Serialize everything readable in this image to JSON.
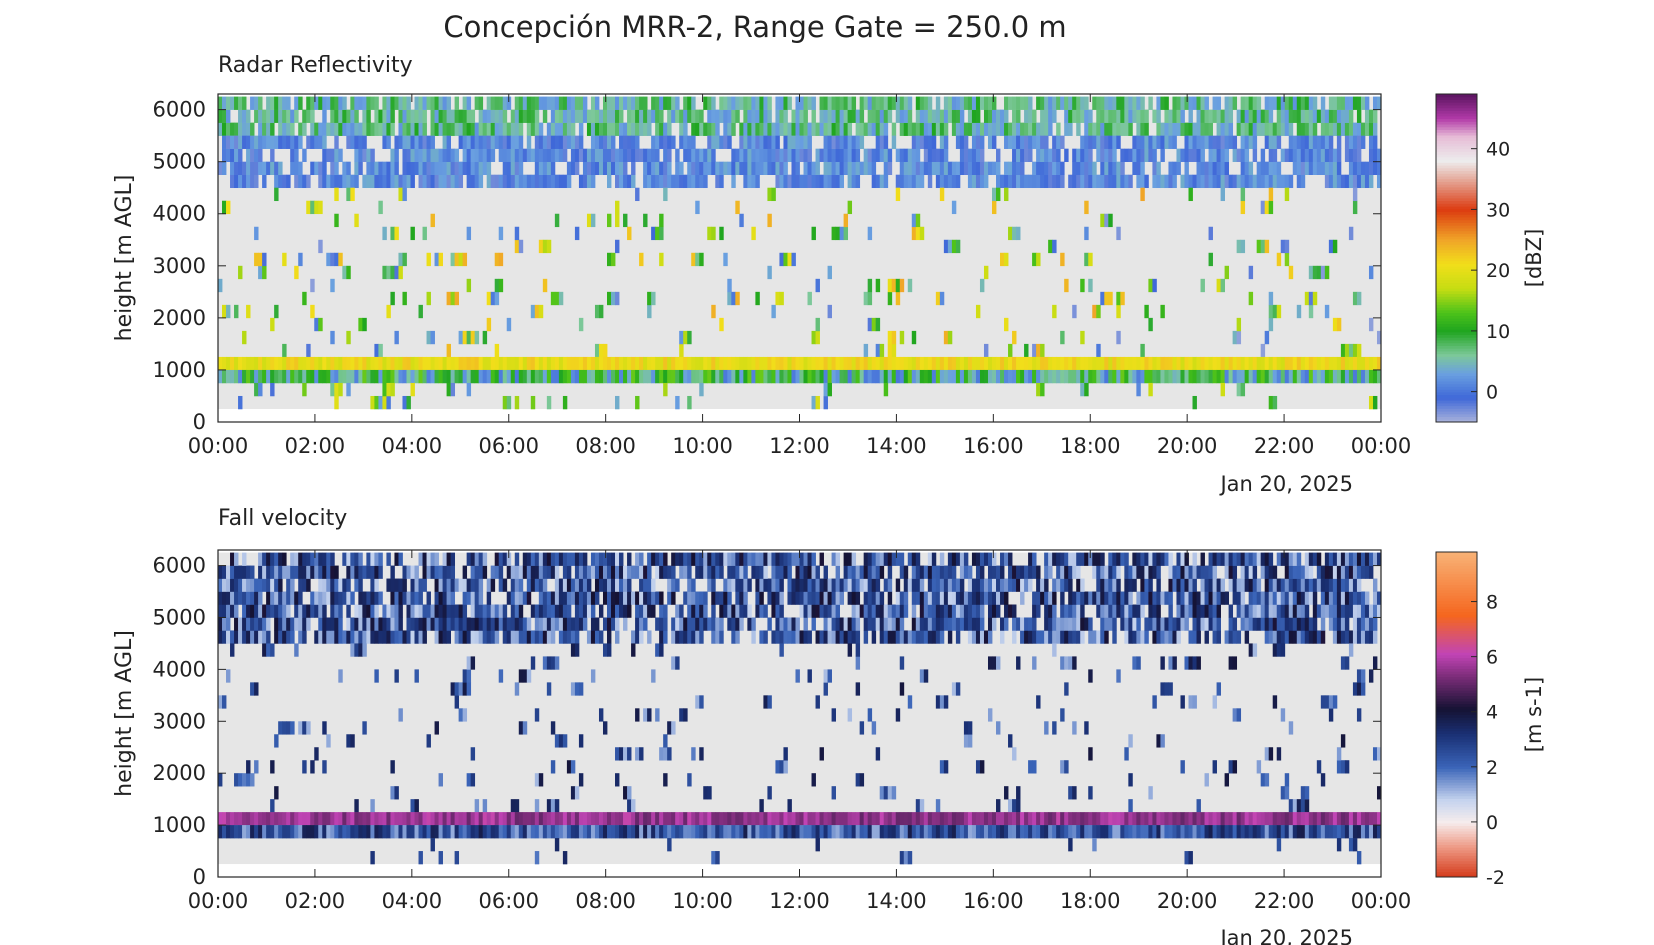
{
  "title": "Concepción MRR-2, Range Gate = 250.0 m",
  "chart_data": [
    {
      "type": "heatmap",
      "title": "Radar Reflectivity",
      "xlabel": "",
      "ylabel": "height [m AGL]",
      "date_label": "Jan 20, 2025",
      "x_ticks": [
        "00:00",
        "02:00",
        "04:00",
        "06:00",
        "08:00",
        "10:00",
        "12:00",
        "14:00",
        "16:00",
        "18:00",
        "20:00",
        "22:00",
        "00:00"
      ],
      "x_range_hours": [
        0,
        24
      ],
      "y_ticks": [
        0,
        1000,
        2000,
        3000,
        4000,
        5000,
        6000
      ],
      "ylim": [
        0,
        6300
      ],
      "data_height_range": [
        250,
        6250
      ],
      "colorbar": {
        "label": "[dBZ]",
        "ticks": [
          0,
          10,
          20,
          30,
          40
        ],
        "range": [
          -5,
          49
        ],
        "stops": [
          {
            "v": -5,
            "color": "#aab3db"
          },
          {
            "v": -1,
            "color": "#3f68d8"
          },
          {
            "v": 3,
            "color": "#6aa0e0"
          },
          {
            "v": 6,
            "color": "#7dc89a"
          },
          {
            "v": 10,
            "color": "#1fa51f"
          },
          {
            "v": 13,
            "color": "#4cc21a"
          },
          {
            "v": 17,
            "color": "#c6dd13"
          },
          {
            "v": 21,
            "color": "#f1de1a"
          },
          {
            "v": 25,
            "color": "#f0a528"
          },
          {
            "v": 30,
            "color": "#dc3b10"
          },
          {
            "v": 34,
            "color": "#e39480"
          },
          {
            "v": 38,
            "color": "#ededed"
          },
          {
            "v": 42,
            "color": "#e6bcd6"
          },
          {
            "v": 45,
            "color": "#b23aa8"
          },
          {
            "v": 49,
            "color": "#5a1460"
          }
        ]
      },
      "observed_layers": [
        {
          "h_from": 5500,
          "h_to": 6250,
          "value_range": [
            2,
            10
          ],
          "coverage": 0.95
        },
        {
          "h_from": 4500,
          "h_to": 5500,
          "value_range": [
            -3,
            4
          ],
          "coverage": 0.6
        },
        {
          "h_from": 1250,
          "h_to": 4500,
          "value_range": [
            -4,
            25
          ],
          "coverage": 0.06
        },
        {
          "h_from": 1000,
          "h_to": 1250,
          "value_range": [
            18,
            23
          ],
          "coverage": 1.0
        },
        {
          "h_from": 750,
          "h_to": 1000,
          "value_range": [
            0,
            14
          ],
          "coverage": 1.0
        },
        {
          "h_from": 250,
          "h_to": 750,
          "value_range": [
            -3,
            20
          ],
          "coverage": 0.05
        }
      ]
    },
    {
      "type": "heatmap",
      "title": "Fall velocity",
      "xlabel": "",
      "ylabel": "height [m AGL]",
      "date_label": "Jan 20, 2025",
      "x_ticks": [
        "00:00",
        "02:00",
        "04:00",
        "06:00",
        "08:00",
        "10:00",
        "12:00",
        "14:00",
        "16:00",
        "18:00",
        "20:00",
        "22:00",
        "00:00"
      ],
      "x_range_hours": [
        0,
        24
      ],
      "y_ticks": [
        0,
        1000,
        2000,
        3000,
        4000,
        5000,
        6000
      ],
      "ylim": [
        0,
        6300
      ],
      "data_height_range": [
        250,
        6250
      ],
      "colorbar": {
        "label": "[m s-1]",
        "ticks": [
          -2,
          0,
          2,
          4,
          6,
          8
        ],
        "range": [
          -2,
          9.8
        ],
        "stops": [
          {
            "v": -2,
            "color": "#d43a1a"
          },
          {
            "v": -0.9,
            "color": "#ee9a86"
          },
          {
            "v": 0,
            "color": "#f6eded"
          },
          {
            "v": 0.8,
            "color": "#c5d3ee"
          },
          {
            "v": 2,
            "color": "#3a64b8"
          },
          {
            "v": 3.2,
            "color": "#1a3074"
          },
          {
            "v": 4.1,
            "color": "#151233"
          },
          {
            "v": 5.3,
            "color": "#7d2d7a"
          },
          {
            "v": 6.1,
            "color": "#c144b5"
          },
          {
            "v": 7.5,
            "color": "#f5661e"
          },
          {
            "v": 9.8,
            "color": "#f8b276"
          }
        ]
      },
      "observed_layers": [
        {
          "h_from": 4500,
          "h_to": 6250,
          "value_range": [
            0.8,
            4.2
          ],
          "coverage": 0.7
        },
        {
          "h_from": 1250,
          "h_to": 4500,
          "value_range": [
            1.0,
            4.0
          ],
          "coverage": 0.06
        },
        {
          "h_from": 1000,
          "h_to": 1250,
          "value_range": [
            5.0,
            6.2
          ],
          "coverage": 1.0
        },
        {
          "h_from": 750,
          "h_to": 1000,
          "value_range": [
            1.2,
            3.8
          ],
          "coverage": 1.0
        },
        {
          "h_from": 250,
          "h_to": 750,
          "value_range": [
            1.5,
            3.5
          ],
          "coverage": 0.04
        }
      ]
    }
  ]
}
